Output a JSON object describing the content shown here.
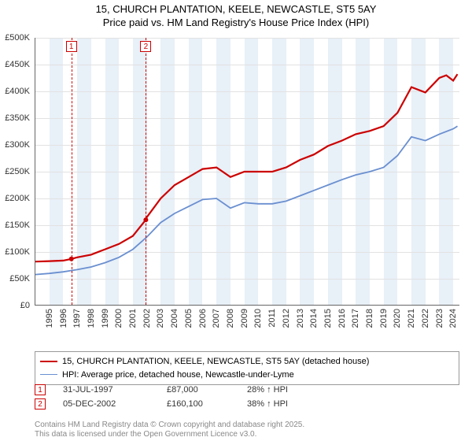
{
  "title_line1": "15, CHURCH PLANTATION, KEELE, NEWCASTLE, ST5 5AY",
  "title_line2": "Price paid vs. HM Land Registry's House Price Index (HPI)",
  "chart": {
    "type": "line",
    "background_color": "#ffffff",
    "grid_color": "#e2e2e2",
    "band_color": "#e8f0f8",
    "axis_color": "#666666",
    "tick_fontsize": 11,
    "title_fontsize": 13,
    "x_years": [
      1995,
      1996,
      1997,
      1998,
      1999,
      2000,
      2001,
      2002,
      2003,
      2004,
      2005,
      2006,
      2007,
      2008,
      2009,
      2010,
      2011,
      2012,
      2013,
      2014,
      2015,
      2016,
      2017,
      2018,
      2019,
      2020,
      2021,
      2022,
      2023,
      2024
    ],
    "xlim": [
      1995,
      2025.5
    ],
    "ylim": [
      0,
      500000
    ],
    "ytick_step": 50000,
    "ylabels": [
      "£0",
      "£50K",
      "£100K",
      "£150K",
      "£200K",
      "£250K",
      "£300K",
      "£350K",
      "£400K",
      "£450K",
      "£500K"
    ],
    "series": [
      {
        "name": "property",
        "label": "15, CHURCH PLANTATION, KEELE, NEWCASTLE, ST5 5AY (detached house)",
        "color": "#cc0000",
        "width": 2.2,
        "points": [
          [
            1995,
            82000
          ],
          [
            1996,
            83000
          ],
          [
            1997,
            84000
          ],
          [
            1997.58,
            87000
          ],
          [
            1998,
            90000
          ],
          [
            1999,
            95000
          ],
          [
            2000,
            105000
          ],
          [
            2001,
            115000
          ],
          [
            2002,
            130000
          ],
          [
            2002.93,
            160100
          ],
          [
            2003,
            165000
          ],
          [
            2004,
            200000
          ],
          [
            2005,
            225000
          ],
          [
            2006,
            240000
          ],
          [
            2007,
            255000
          ],
          [
            2008,
            258000
          ],
          [
            2009,
            240000
          ],
          [
            2010,
            250000
          ],
          [
            2011,
            250000
          ],
          [
            2012,
            250000
          ],
          [
            2013,
            258000
          ],
          [
            2014,
            272000
          ],
          [
            2015,
            282000
          ],
          [
            2016,
            298000
          ],
          [
            2017,
            308000
          ],
          [
            2018,
            320000
          ],
          [
            2019,
            326000
          ],
          [
            2020,
            335000
          ],
          [
            2021,
            360000
          ],
          [
            2022,
            408000
          ],
          [
            2023,
            398000
          ],
          [
            2024,
            425000
          ],
          [
            2024.5,
            430000
          ],
          [
            2025,
            420000
          ],
          [
            2025.3,
            432000
          ]
        ],
        "sale_markers": [
          [
            1997.58,
            87000
          ],
          [
            2002.93,
            160100
          ]
        ]
      },
      {
        "name": "hpi",
        "label": "HPI: Average price, detached house, Newcastle-under-Lyme",
        "color": "#6a8fd0",
        "width": 1.8,
        "points": [
          [
            1995,
            58000
          ],
          [
            1996,
            60000
          ],
          [
            1997,
            63000
          ],
          [
            1998,
            67000
          ],
          [
            1999,
            72000
          ],
          [
            2000,
            80000
          ],
          [
            2001,
            90000
          ],
          [
            2002,
            105000
          ],
          [
            2003,
            128000
          ],
          [
            2004,
            155000
          ],
          [
            2005,
            172000
          ],
          [
            2006,
            185000
          ],
          [
            2007,
            198000
          ],
          [
            2008,
            200000
          ],
          [
            2009,
            182000
          ],
          [
            2010,
            192000
          ],
          [
            2011,
            190000
          ],
          [
            2012,
            190000
          ],
          [
            2013,
            195000
          ],
          [
            2014,
            205000
          ],
          [
            2015,
            215000
          ],
          [
            2016,
            225000
          ],
          [
            2017,
            235000
          ],
          [
            2018,
            244000
          ],
          [
            2019,
            250000
          ],
          [
            2020,
            258000
          ],
          [
            2021,
            280000
          ],
          [
            2022,
            315000
          ],
          [
            2023,
            308000
          ],
          [
            2024,
            320000
          ],
          [
            2025,
            330000
          ],
          [
            2025.3,
            335000
          ]
        ]
      }
    ],
    "event_lines": [
      {
        "n": "1",
        "x": 1997.58
      },
      {
        "n": "2",
        "x": 2002.93
      }
    ]
  },
  "legend": {
    "border_color": "#999999"
  },
  "events": [
    {
      "n": "1",
      "date": "31-JUL-1997",
      "price": "£87,000",
      "hpi": "28% ↑ HPI"
    },
    {
      "n": "2",
      "date": "05-DEC-2002",
      "price": "£160,100",
      "hpi": "38% ↑ HPI"
    }
  ],
  "footer_line1": "Contains HM Land Registry data © Crown copyright and database right 2025.",
  "footer_line2": "This data is licensed under the Open Government Licence v3.0."
}
